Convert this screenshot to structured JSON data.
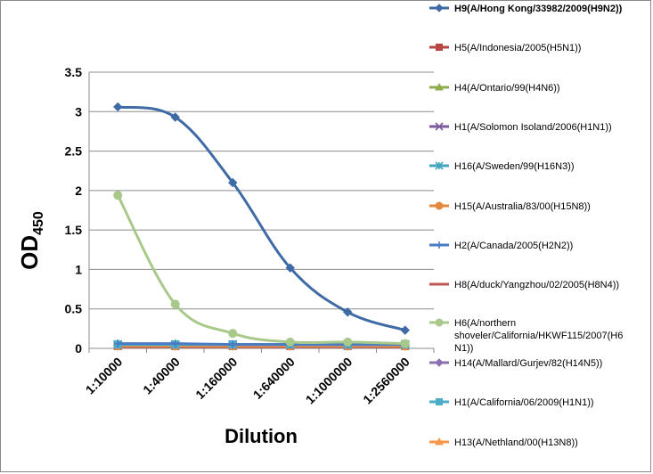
{
  "chart_data": {
    "type": "line",
    "title": "",
    "xlabel": "Dilution",
    "ylabel": "OD",
    "ylabel_sub": "450",
    "categories": [
      "1:10000",
      "1:40000",
      "1:160000",
      "1:640000",
      "1:1000000",
      "1:2560000"
    ],
    "y_ticks": [
      "0",
      "0.5",
      "1",
      "1.5",
      "2",
      "2.5",
      "3",
      "3.5"
    ],
    "ylim": [
      0,
      3.5
    ],
    "grid": true,
    "legend_position": "right",
    "series": [
      {
        "name": "H9(A/Hong Kong/33982/2009(H9N2))",
        "color": "#3e6aa6",
        "marker": "diamond",
        "bold": true,
        "values": [
          3.06,
          2.93,
          2.1,
          1.02,
          0.46,
          0.23
        ]
      },
      {
        "name": "H5(A/Indonesia/2005(H5N1))",
        "color": "#b84644",
        "marker": "square",
        "values": [
          0.03,
          0.03,
          0.03,
          0.03,
          0.03,
          0.03
        ]
      },
      {
        "name": "H4(A/Ontario/99(H4N6))",
        "color": "#8fad4a",
        "marker": "triangle",
        "values": [
          0.04,
          0.04,
          0.04,
          0.04,
          0.04,
          0.04
        ]
      },
      {
        "name": "H1(A/Solomon Isoland/2006(H1N1))",
        "color": "#7a5b9b",
        "marker": "x",
        "values": [
          0.04,
          0.04,
          0.04,
          0.04,
          0.04,
          0.04
        ]
      },
      {
        "name": "H16(A/Sweden/99(H16N3))",
        "color": "#45a5bf",
        "marker": "asterisk",
        "values": [
          0.05,
          0.05,
          0.05,
          0.05,
          0.05,
          0.05
        ]
      },
      {
        "name": "H15(A/Australia/83/00(H15N8))",
        "color": "#e3883e",
        "marker": "circle",
        "values": [
          0.03,
          0.03,
          0.03,
          0.03,
          0.03,
          0.03
        ]
      },
      {
        "name": "H2(A/Canada/2005(H2N2))",
        "color": "#4a7cc4",
        "marker": "plus",
        "values": [
          0.06,
          0.06,
          0.05,
          0.05,
          0.05,
          0.05
        ]
      },
      {
        "name": "H8(A/duck/Yangzhou/02/2005(H8N4))",
        "color": "#c25552",
        "marker": "dash",
        "values": [
          0.02,
          0.02,
          0.02,
          0.02,
          0.02,
          0.02
        ]
      },
      {
        "name": "H6(A/northern shoveler/California/HKWF115/2007(H6N1))",
        "legend_lines": [
          "H6(A/northern",
          "shoveler/California/HKWF115/2007(H6",
          "N1))"
        ],
        "color": "#a9c98a",
        "marker": "circle",
        "values": [
          1.94,
          0.56,
          0.19,
          0.08,
          0.08,
          0.06
        ]
      },
      {
        "name": "H14(A/Mallard/Gurjev/82(H14N5))",
        "color": "#8b6fae",
        "marker": "diamond",
        "values": [
          0.05,
          0.05,
          0.05,
          0.05,
          0.05,
          0.05
        ]
      },
      {
        "name": "H1(A/California/06/2009(H1N1))",
        "color": "#4bacc6",
        "marker": "square",
        "values": [
          0.05,
          0.05,
          0.05,
          0.05,
          0.05,
          0.05
        ]
      },
      {
        "name": "H13(A/Nethland/00(H13N8))",
        "color": "#f79646",
        "marker": "triangle",
        "values": [
          0.04,
          0.04,
          0.04,
          0.04,
          0.04,
          0.04
        ]
      }
    ]
  }
}
